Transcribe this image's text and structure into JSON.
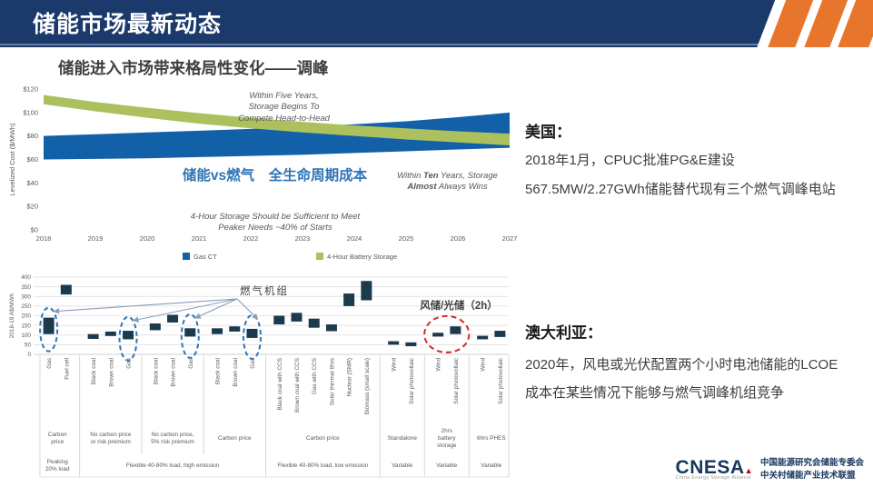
{
  "header": {
    "title": "储能市场最新动态"
  },
  "left": {
    "section_title": "储能进入市场带来格局性变化——调峰"
  },
  "right_panel": {
    "us": {
      "heading": "美国：",
      "line1": "2018年1月，CPUC批准PG&E建设",
      "line2": "567.5MW/2.27GWh储能替代现有三个燃气调峰电站"
    },
    "australia": {
      "heading": "澳大利亚：",
      "line1": "2020年，风电或光伏配置两个小时电池储能的LCOE",
      "line2": "成本在某些情况下能够与燃气调峰机组竞争"
    }
  },
  "footer": {
    "logo_text": "CNESA",
    "logo_accent": "▲",
    "logo_tagline": "China Energy Storage Alliance",
    "org_line1": "中国能源研究会储能专委会",
    "org_line2": "中关村储能产业技术联盟"
  },
  "colors": {
    "header_navy": "#1B3A6B",
    "stripe_orange": "#E8752C",
    "accent_blue": "#2E74B5",
    "logo_navy": "#17365D",
    "logo_red": "#C00000"
  },
  "chart_data": [
    {
      "type": "area",
      "ylabel": "Levelized Cost ($/MWh)",
      "x": [
        2018,
        2019,
        2020,
        2021,
        2022,
        2023,
        2024,
        2025,
        2026,
        2027
      ],
      "ylim": [
        0,
        120
      ],
      "yticks": [
        0,
        20,
        40,
        60,
        80,
        100,
        120
      ],
      "ytick_prefix": "$",
      "grid": false,
      "legend_position": "bottom",
      "series": [
        {
          "name": "Gas CT",
          "color": "#1160A8",
          "low": [
            60,
            60.5,
            61,
            62,
            63,
            64,
            65.5,
            67,
            68.5,
            70
          ],
          "high": [
            80,
            81.5,
            83,
            84.5,
            86,
            88,
            90,
            92.5,
            96,
            100
          ]
        },
        {
          "name": "4-Hour Battery Storage",
          "color": "#ADC05E",
          "low": [
            107,
            101,
            95.5,
            90.5,
            86.5,
            83,
            80,
            77,
            74.5,
            72
          ],
          "high": [
            115,
            109,
            104,
            99.5,
            95.5,
            92,
            89,
            86.5,
            84,
            82
          ]
        }
      ],
      "annotations": {
        "five_years": [
          "Within Five Years,",
          "Storage Begins To",
          "Compete Head-to-Head"
        ],
        "vs_title": "储能vs燃气　全生命周期成本",
        "ten_years": {
          "w1": "Within ",
          "w2": "Ten",
          "w3": " Years, Storage",
          "w4": "Almost",
          "w5": " Always Wins"
        },
        "four_hour": [
          "4-Hour Storage Should be Sufficient to Meet",
          "Peaker Needs ~40% of Starts"
        ]
      }
    },
    {
      "type": "range-bar",
      "ylabel": "2018-19 A$/MWh",
      "ylim": [
        0,
        400
      ],
      "ytick_step": 50,
      "grid": true,
      "bar_color": "#1C3A4E",
      "circle_colors": {
        "blue": "#2E75B6",
        "red": "#D42B2B"
      },
      "arrow_color": "#8A9CBA",
      "groups": [
        {
          "price_lines": [
            "Carbon",
            "price"
          ],
          "bars": [
            {
              "label": "Gas",
              "low": 105,
              "high": 190,
              "circle": "blue"
            },
            {
              "label": "Fuel cell",
              "low": 310,
              "high": 360
            }
          ]
        },
        {
          "price_lines": [
            "No carbon price",
            "or risk premium"
          ],
          "bars": [
            {
              "label": "Black coal",
              "low": 80,
              "high": 105
            },
            {
              "label": "Brown coal",
              "low": 95,
              "high": 118
            },
            {
              "label": "Gas",
              "low": 78,
              "high": 122,
              "circle": "blue"
            }
          ]
        },
        {
          "price_lines": [
            "No carbon price,",
            "5% risk premium"
          ],
          "bars": [
            {
              "label": "Black coal",
              "low": 125,
              "high": 160
            },
            {
              "label": "Brown coal",
              "low": 165,
              "high": 205
            },
            {
              "label": "Gas",
              "low": 92,
              "high": 135,
              "circle": "blue"
            }
          ]
        },
        {
          "price_lines": [
            "Carbon price"
          ],
          "bars": [
            {
              "label": "Black coal",
              "low": 105,
              "high": 135
            },
            {
              "label": "Brown coal",
              "low": 118,
              "high": 145
            },
            {
              "label": "Gas",
              "low": 85,
              "high": 132,
              "circle": "blue"
            }
          ]
        },
        {
          "price_lines": [
            "Carbon price"
          ],
          "bars": [
            {
              "label": "Black coal with CCS",
              "low": 155,
              "high": 200
            },
            {
              "label": "Brown coal with CCS",
              "low": 170,
              "high": 215
            },
            {
              "label": "Gas with CCS",
              "low": 138,
              "high": 185
            },
            {
              "label": "Solar thermal 8hrs",
              "low": 120,
              "high": 155
            },
            {
              "label": "Nuclear (SMR)",
              "low": 250,
              "high": 315
            },
            {
              "label": "Biomass (small scale)",
              "low": 280,
              "high": 380
            }
          ]
        },
        {
          "price_lines": [
            "Standalone"
          ],
          "bars": [
            {
              "label": "Wind",
              "low": 50,
              "high": 68
            },
            {
              "label": "Solar photovoltaic",
              "low": 42,
              "high": 62
            }
          ]
        },
        {
          "price_lines": [
            "2hrs",
            "battery",
            "storage"
          ],
          "bars": [
            {
              "label": "Wind",
              "low": 92,
              "high": 112,
              "circle": "red"
            },
            {
              "label": "Solar photovoltaic",
              "low": 105,
              "high": 145,
              "circle": "red"
            }
          ]
        },
        {
          "price_lines": [
            "6hrs PHES"
          ],
          "bars": [
            {
              "label": "Wind",
              "low": 78,
              "high": 96
            },
            {
              "label": "Solar photovoltaic",
              "low": 90,
              "high": 122
            }
          ]
        }
      ],
      "load_groups": [
        {
          "lines": [
            "Peaking",
            "20% load"
          ],
          "span": [
            0,
            0
          ]
        },
        {
          "lines": [
            "Flexible 40-80% load, high emission"
          ],
          "span": [
            1,
            3
          ]
        },
        {
          "lines": [
            "Flexible 40-80% load, low emission"
          ],
          "span": [
            4,
            4
          ]
        },
        {
          "lines": [
            "Variable"
          ],
          "span": [
            5,
            5
          ]
        },
        {
          "lines": [
            "Variable"
          ],
          "span": [
            6,
            6
          ]
        },
        {
          "lines": [
            "Variable"
          ],
          "span": [
            7,
            7
          ]
        }
      ],
      "annotations": {
        "gas_units": "燃气机组",
        "wind_solar": "风储/光储（2h）"
      }
    }
  ]
}
